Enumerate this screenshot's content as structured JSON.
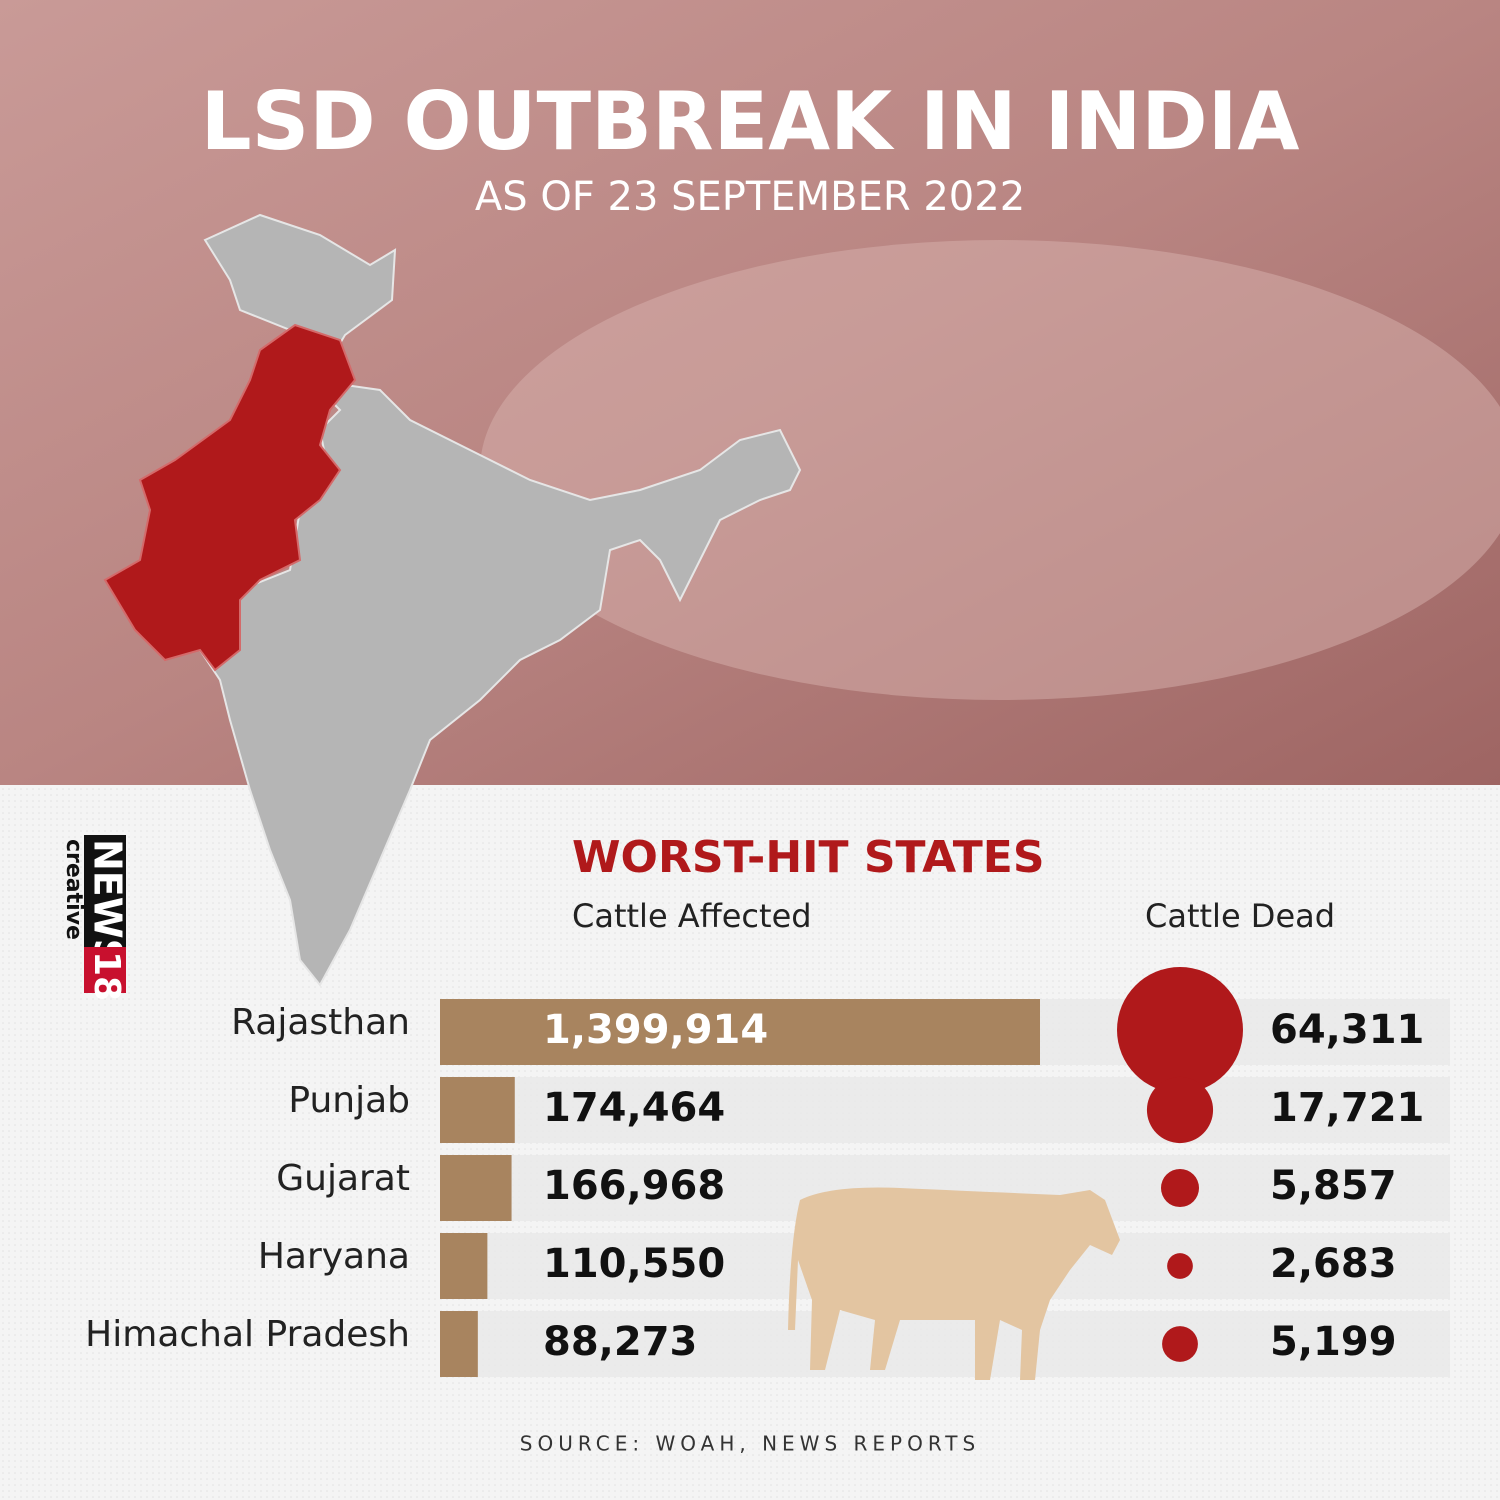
{
  "header": {
    "title": "LSD OUTBREAK IN INDIA",
    "subtitle": "AS OF 23 SEPTEMBER 2022"
  },
  "logo": {
    "brand": "NEWS",
    "number": "18",
    "tagline": "creative"
  },
  "source": "SOURCE: WOAH, NEWS REPORTS",
  "chart_data": {
    "type": "bar",
    "title": "WORST-HIT STATES",
    "categories": [
      "Rajasthan",
      "Punjab",
      "Gujarat",
      "Haryana",
      "Himachal Pradesh"
    ],
    "series": [
      {
        "name": "Cattle Affected",
        "type": "bar",
        "color": "#a8845f",
        "values": [
          1399914,
          174464,
          166968,
          110550,
          88273
        ],
        "value_labels": [
          "1,399,914",
          "174,464",
          "166,968",
          "110,550",
          "88,273"
        ]
      },
      {
        "name": "Cattle Dead",
        "type": "bubble",
        "color": "#b0191b",
        "values": [
          64311,
          17721,
          5857,
          2683,
          5199
        ],
        "value_labels": [
          "64,311",
          "17,721",
          "5,857",
          "2,683",
          "5,199"
        ]
      }
    ]
  }
}
